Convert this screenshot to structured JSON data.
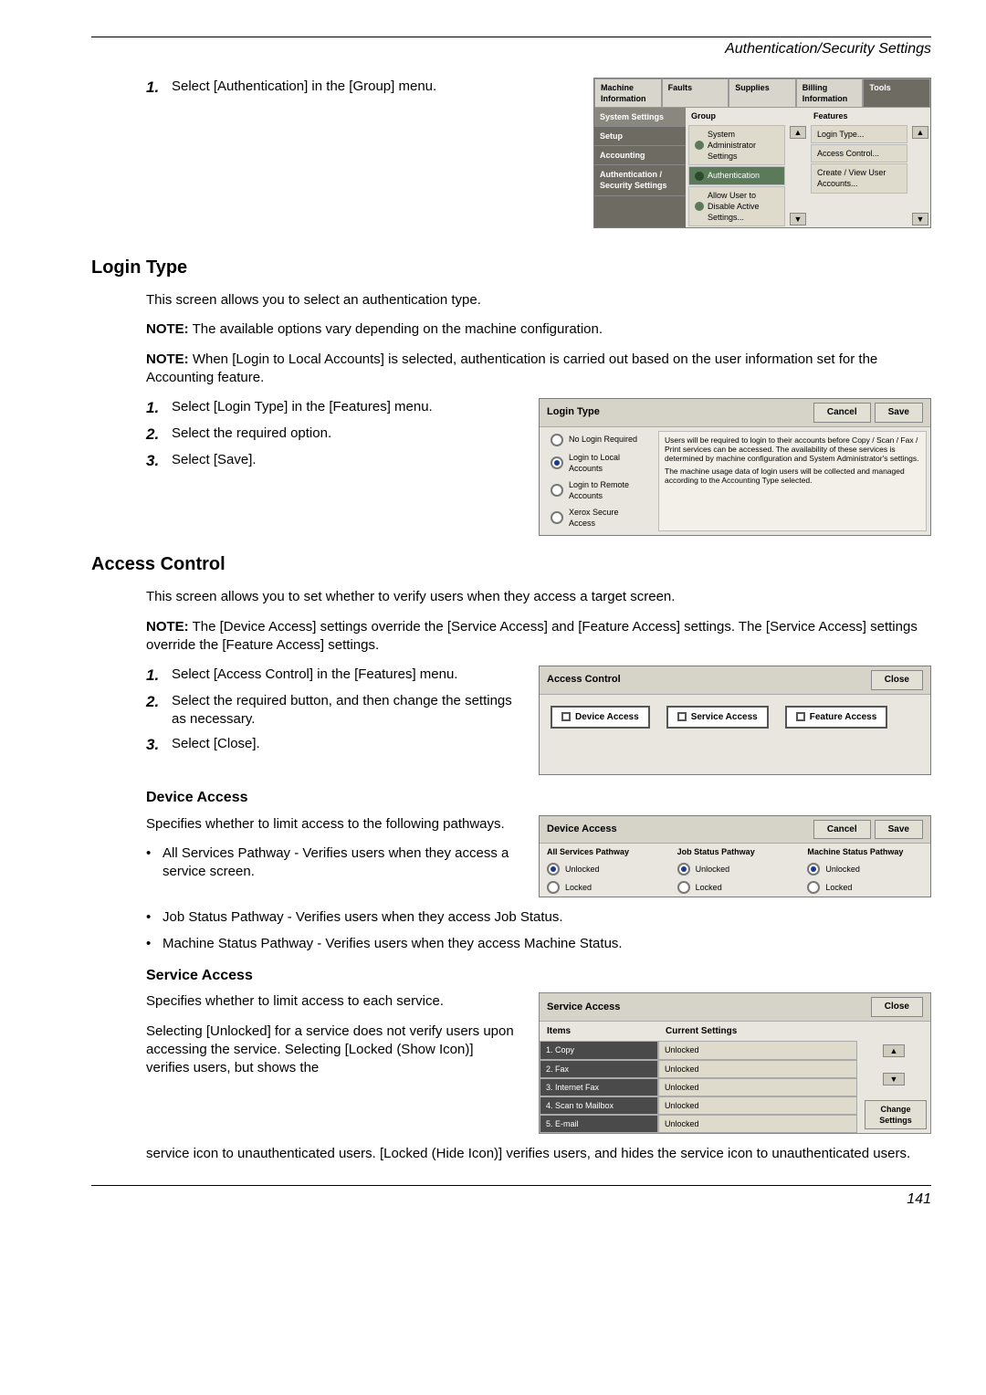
{
  "header": {
    "title": "Authentication/Security Settings"
  },
  "intro": {
    "step1_num": "1.",
    "step1_text": "Select [Authentication] in the [Group] menu."
  },
  "sys_panel": {
    "tabs": [
      "Machine Information",
      "Faults",
      "Supplies",
      "Billing Information",
      "Tools"
    ],
    "active_tab": 4,
    "sidebar": [
      "System Settings",
      "Setup",
      "Accounting",
      "Authentication / Security Settings"
    ],
    "group_hdr": "Group",
    "features_hdr": "Features",
    "group_items": [
      "System Administrator Settings",
      "Authentication",
      "Allow User to Disable Active Settings..."
    ],
    "feature_items": [
      "Login Type...",
      "Access Control...",
      "Create / View User Accounts..."
    ]
  },
  "login_type": {
    "heading": "Login Type",
    "p1": "This screen allows you to select an authentication type.",
    "note1_label": "NOTE:",
    "note1": " The available options vary depending on the machine configuration.",
    "note2_label": "NOTE:",
    "note2": " When [Login to Local Accounts] is selected, authentication is carried out based on the user information set for the Accounting feature.",
    "s1n": "1.",
    "s1": "Select [Login Type] in the [Features] menu.",
    "s2n": "2.",
    "s2": "Select the required option.",
    "s3n": "3.",
    "s3": "Select [Save].",
    "panel": {
      "title": "Login Type",
      "cancel": "Cancel",
      "save": "Save",
      "opts": [
        "No Login Required",
        "Login to Local Accounts",
        "Login to Remote Accounts",
        "Xerox Secure Access"
      ],
      "info1": "Users will be required to login to their accounts before Copy / Scan / Fax / Print services can be accessed. The availability of these services is determined by machine configuration and System Administrator's settings.",
      "info2": "The machine usage data of login users will be collected and managed according to the Accounting Type selected."
    }
  },
  "access_control": {
    "heading": "Access Control",
    "p1": "This screen allows you to set whether to verify users when they access a target screen.",
    "note_label": "NOTE:",
    "note": " The [Device Access] settings override the [Service Access] and [Feature Access] settings. The [Service Access] settings override the [Feature Access] settings.",
    "s1n": "1.",
    "s1": "Select [Access Control] in the [Features] menu.",
    "s2n": "2.",
    "s2": "Select the required button, and then change the settings as necessary.",
    "s3n": "3.",
    "s3": "Select [Close].",
    "ac_panel": {
      "title": "Access Control",
      "close": "Close",
      "b1": "Device Access",
      "b2": "Service Access",
      "b3": "Feature Access"
    },
    "device": {
      "h": "Device Access",
      "p": "Specifies whether to limit access to the following pathways.",
      "b1": "All Services Pathway - Verifies users when they access a service screen.",
      "b2": "Job Status Pathway - Verifies users when they access Job Status.",
      "b3": "Machine Status Pathway - Verifies users when they access Machine Status.",
      "panel": {
        "title": "Device Access",
        "cancel": "Cancel",
        "save": "Save",
        "c1": "All Services Pathway",
        "c2": "Job Status Pathway",
        "c3": "Machine Status Pathway",
        "unlocked": "Unlocked",
        "locked": "Locked"
      }
    },
    "service": {
      "h": "Service Access",
      "p": "Specifies whether to limit access to each service.",
      "p2": "Selecting [Unlocked] for a service does not verify users upon accessing the service. Selecting [Locked (Show Icon)] verifies users, but shows the",
      "p3": "service icon to unauthenticated users. [Locked (Hide Icon)] verifies users, and hides the service icon to unauthenticated users.",
      "panel": {
        "title": "Service Access",
        "close": "Close",
        "items_h": "Items",
        "cur_h": "Current Settings",
        "rows": [
          {
            "n": "1.",
            "name": "Copy",
            "v": "Unlocked"
          },
          {
            "n": "2.",
            "name": "Fax",
            "v": "Unlocked"
          },
          {
            "n": "3.",
            "name": "Internet Fax",
            "v": "Unlocked"
          },
          {
            "n": "4.",
            "name": "Scan to Mailbox",
            "v": "Unlocked"
          },
          {
            "n": "5.",
            "name": "E-mail",
            "v": "Unlocked"
          }
        ],
        "change": "Change Settings"
      }
    }
  },
  "footer": {
    "page": "141"
  }
}
